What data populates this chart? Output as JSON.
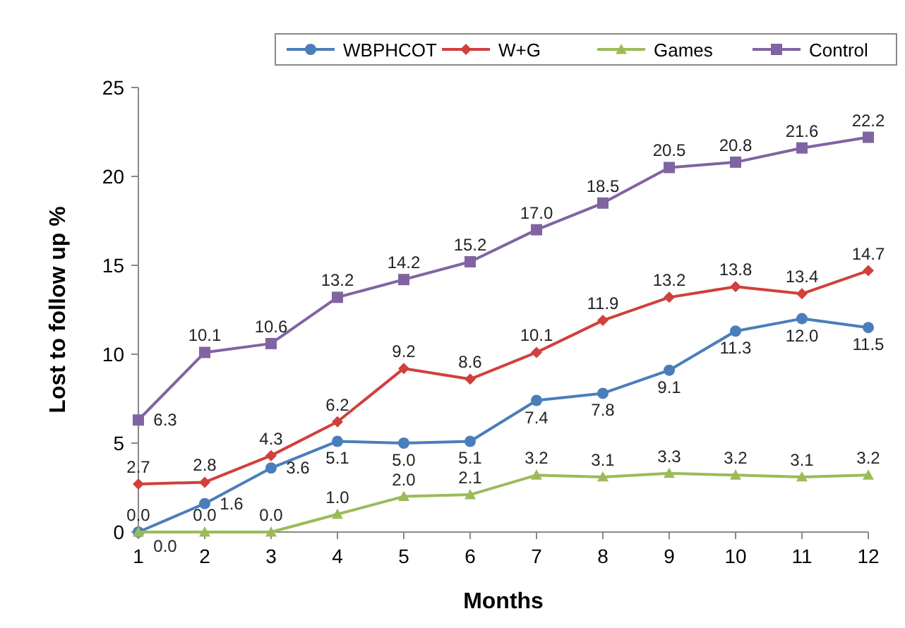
{
  "chart_data": {
    "type": "line",
    "xlabel": "Months",
    "ylabel": "Lost to follow up %",
    "x": [
      1,
      2,
      3,
      4,
      5,
      6,
      7,
      8,
      9,
      10,
      11,
      12
    ],
    "xlim": [
      1,
      12
    ],
    "xticks": [
      1,
      2,
      3,
      4,
      5,
      6,
      7,
      8,
      9,
      10,
      11,
      12
    ],
    "ylim": [
      0,
      25
    ],
    "yticks": [
      0,
      5,
      10,
      15,
      20,
      25
    ],
    "grid": false,
    "legend": "top right",
    "series": [
      {
        "name": "WBPHCOT",
        "color": "#4a7ebb",
        "marker": "circle",
        "values": [
          0.0,
          1.6,
          3.6,
          5.1,
          5.0,
          5.1,
          7.4,
          7.8,
          9.1,
          11.3,
          12.0,
          11.5
        ],
        "value_labels": [
          "0.0",
          "1.6",
          "3.6",
          "5.1",
          "5.0",
          "5.1",
          "7.4",
          "7.8",
          "9.1",
          "11.3",
          "12.0",
          "11.5"
        ]
      },
      {
        "name": "W+G",
        "color": "#d0403c",
        "marker": "diamond",
        "values": [
          2.7,
          2.8,
          4.3,
          6.2,
          9.2,
          8.6,
          10.1,
          11.9,
          13.2,
          13.8,
          13.4,
          14.7
        ],
        "value_labels": [
          "2.7",
          "2.8",
          "4.3",
          "6.2",
          "9.2",
          "8.6",
          "10.1",
          "11.9",
          "13.2",
          "13.8",
          "13.4",
          "14.7"
        ]
      },
      {
        "name": "Games",
        "color": "#9bbb59",
        "marker": "triangle",
        "values": [
          0.0,
          0.0,
          0.0,
          1.0,
          2.0,
          2.1,
          3.2,
          3.1,
          3.3,
          3.2,
          3.1,
          3.2
        ],
        "value_labels": [
          "0.0",
          "0.0",
          "0.0",
          "1.0",
          "2.0",
          "2.1",
          "3.2",
          "3.1",
          "3.3",
          "3.2",
          "3.1",
          "3.2"
        ]
      },
      {
        "name": "Control",
        "color": "#8064a2",
        "marker": "square",
        "values": [
          6.3,
          10.1,
          10.6,
          13.2,
          14.2,
          15.2,
          17.0,
          18.5,
          20.5,
          20.8,
          21.6,
          22.2
        ],
        "value_labels": [
          "6.3",
          "10.1",
          "10.6",
          "13.2",
          "14.2",
          "15.2",
          "17.0",
          "18.5",
          "20.5",
          "20.8",
          "21.6",
          "22.2"
        ]
      }
    ]
  }
}
